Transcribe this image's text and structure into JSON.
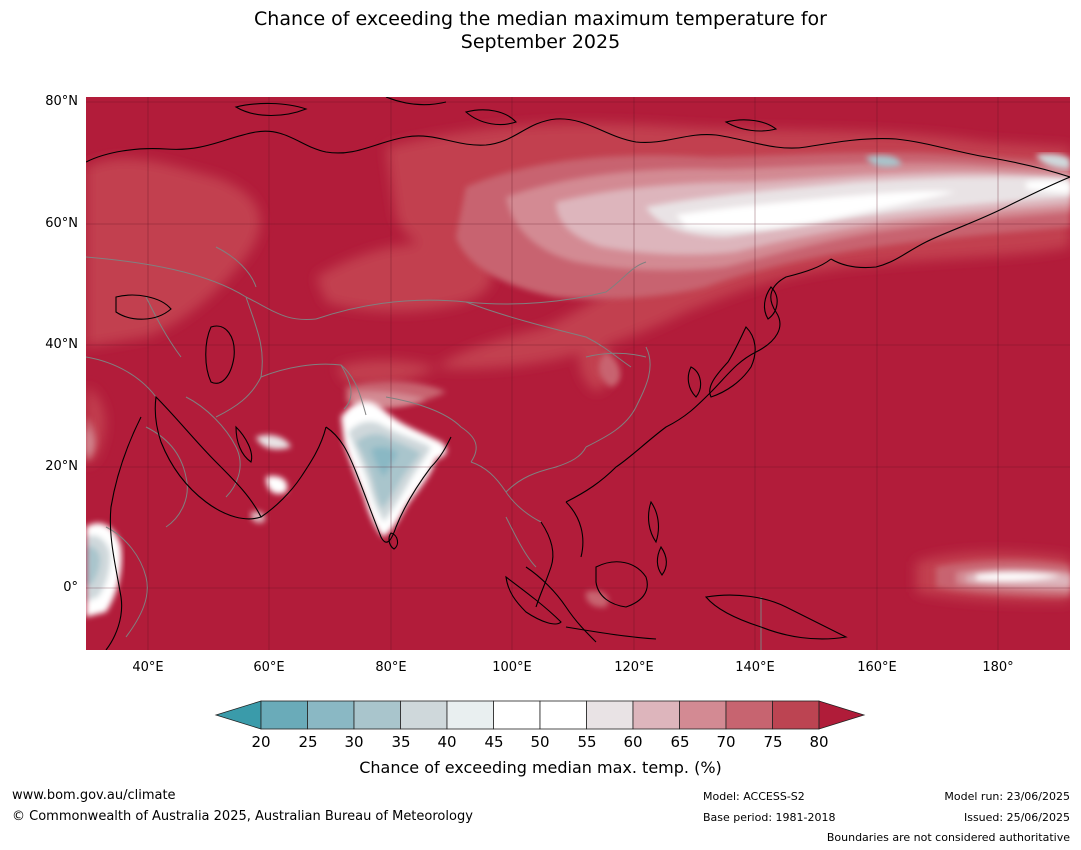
{
  "title": {
    "line1": "Chance of exceeding the median maximum temperature for",
    "line2": "September 2025"
  },
  "map": {
    "latitude_labels": [
      "80°N",
      "60°N",
      "40°N",
      "20°N",
      "0°"
    ],
    "longitude_labels": [
      "40°E",
      "60°E",
      "80°E",
      "100°E",
      "120°E",
      "140°E",
      "160°E",
      "180°"
    ],
    "colors": {
      "ocean_dominant": "#b21c3a",
      "hot_75_80": "#c24050",
      "hot_70_75": "#c86470",
      "cool_30_35": "#a9c4cc",
      "neutral_45_55": "#ffffff",
      "country_border": "#808080",
      "coastline": "#000000"
    }
  },
  "legend": {
    "ticks": [
      "20",
      "25",
      "30",
      "35",
      "40",
      "45",
      "50",
      "55",
      "60",
      "65",
      "70",
      "75",
      "80"
    ],
    "colors": [
      "#3a9baa",
      "#6aabb9",
      "#8ab8c4",
      "#a9c5cc",
      "#cfd8db",
      "#e9eff0",
      "#ffffff",
      "#ffffff",
      "#e9e3e5",
      "#ddb5bc",
      "#d38a93",
      "#c76470",
      "#bc4452",
      "#b01c39"
    ],
    "label": "Chance of exceeding median max. temp. (%)"
  },
  "footer": {
    "website": "www.bom.gov.au/climate",
    "copyright": "© Commonwealth of Australia 2025, Australian Bureau of Meteorology",
    "model": "Model: ACCESS-S2",
    "base_period": "Base period: 1981-2018",
    "model_run": "Model run: 23/06/2025",
    "issued": "Issued: 25/06/2025",
    "disclaimer": "Boundaries are not considered authoritative"
  }
}
